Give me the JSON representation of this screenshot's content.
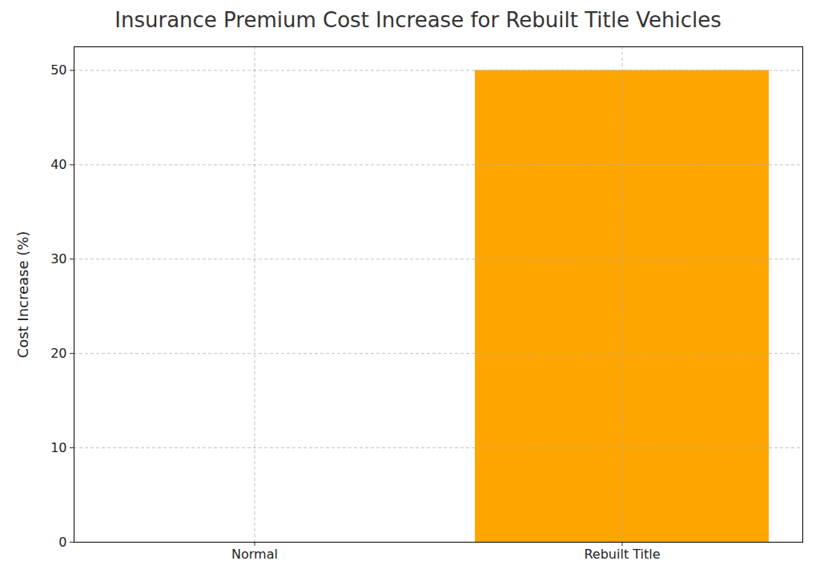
{
  "chart_data": {
    "type": "bar",
    "title": "Insurance Premium Cost Increase for Rebuilt Title Vehicles",
    "y_label": "Cost Increase (%)",
    "categories": [
      "Normal",
      "Rebuilt Title"
    ],
    "values": [
      0,
      50
    ],
    "color": "#ffa500",
    "ylim": [
      0,
      52.5
    ],
    "yticks": [
      0,
      10,
      20,
      30,
      40,
      50
    ],
    "grid": true
  }
}
